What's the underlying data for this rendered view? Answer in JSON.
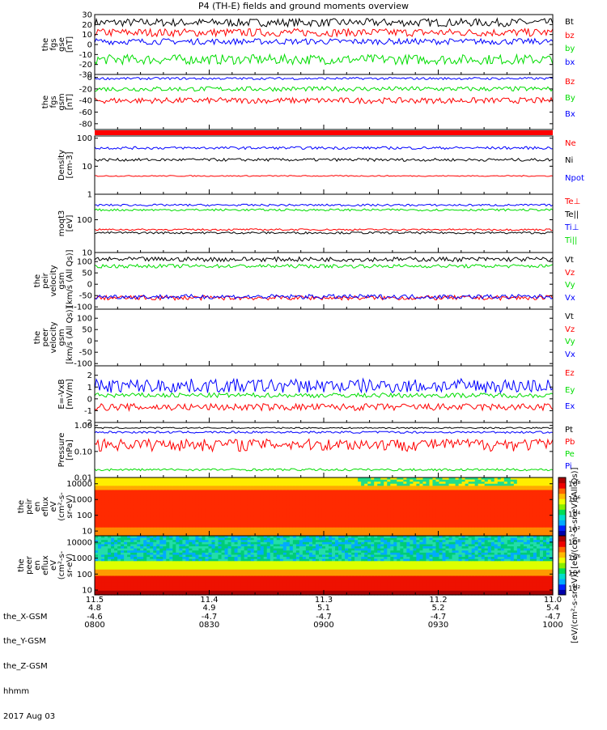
{
  "title": "P4 (TH-E) fields and ground moments overview",
  "date": "2017 Aug 03",
  "ephemeris_labels": [
    "the_X-GSM",
    "the_Y-GSM",
    "the_Z-GSM",
    "hhmm"
  ],
  "ephemeris_columns": [
    [
      "11.5",
      "4.8",
      "-4.6",
      "0800"
    ],
    [
      "11.4",
      "4.9",
      "-4.7",
      "0830"
    ],
    [
      "11.3",
      "5.1",
      "-4.7",
      "0900"
    ],
    [
      "11.2",
      "5.2",
      "-4.7",
      "0930"
    ],
    [
      "11.0",
      "5.4",
      "-4.7",
      "1000"
    ]
  ],
  "colorbar_title": "[eV/(cm²-s-sr-eV)] [eV/(cm²-s-sr-eV)(All Qs)]",
  "colors": {
    "black": "#000000",
    "red": "#ff0000",
    "green": "#00dd00",
    "blue": "#0000ff"
  },
  "chart_data": [
    {
      "type": "line",
      "id": "fgs-gse",
      "ylabel": [
        "the",
        "fgs",
        "gse",
        "[nT]"
      ],
      "ylim": [
        -30,
        30
      ],
      "yticks": [
        "-30",
        "-20",
        "-10",
        "0",
        "10",
        "20",
        "30"
      ],
      "series": [
        {
          "name": "Bt",
          "color": "black",
          "base": 22,
          "amp": 4
        },
        {
          "name": "bz",
          "color": "red",
          "base": 12,
          "amp": 4
        },
        {
          "name": "by",
          "color": "green",
          "base": -15,
          "amp": 5
        },
        {
          "name": "bx",
          "color": "blue",
          "base": 3,
          "amp": 3
        }
      ]
    },
    {
      "type": "line",
      "id": "fgs-gsm",
      "ylabel": [
        "the",
        "fgs",
        "gsm",
        "[nT]"
      ],
      "ylim": [
        -90,
        5
      ],
      "yticks": [
        "-80",
        "-60",
        "-40",
        "-20",
        "0"
      ],
      "series": [
        {
          "name": "Bz",
          "color": "red",
          "base": -40,
          "amp": 5
        },
        {
          "name": "By",
          "color": "green",
          "base": -20,
          "amp": 4
        },
        {
          "name": "Bx",
          "color": "blue",
          "base": -2,
          "amp": 2
        }
      ]
    },
    {
      "type": "bar",
      "id": "flag",
      "ylabel": [],
      "series": []
    },
    {
      "type": "line",
      "id": "density",
      "ylabel": [
        "Density",
        "[cm-3]"
      ],
      "log": true,
      "ylim": [
        1,
        120
      ],
      "yticks": [
        "1",
        "10",
        "100"
      ],
      "series": [
        {
          "name": "Ne",
          "color": "red",
          "base": 4.5,
          "amp": 0.2
        },
        {
          "name": "Ni",
          "color": "black",
          "base": 17,
          "amp": 2
        },
        {
          "name": "Npot",
          "color": "blue",
          "base": 45,
          "amp": 5
        }
      ]
    },
    {
      "type": "line",
      "id": "temperature",
      "ylabel": [
        "moqt3",
        "[eV]"
      ],
      "log": true,
      "ylim": [
        10,
        600
      ],
      "yticks": [
        "10",
        "100"
      ],
      "series": [
        {
          "name": "Te⊥",
          "color": "red",
          "base": 50,
          "amp": 3
        },
        {
          "name": "Te||",
          "color": "black",
          "base": 40,
          "amp": 3
        },
        {
          "name": "Ti⊥",
          "color": "blue",
          "base": 280,
          "amp": 20
        },
        {
          "name": "Ti||",
          "color": "green",
          "base": 200,
          "amp": 15
        }
      ]
    },
    {
      "type": "line",
      "id": "peir-velocity",
      "ylabel": [
        "the",
        "peir",
        "velocity",
        "gsm",
        "[km/s (All Qs)]"
      ],
      "ylim": [
        -110,
        140
      ],
      "yticks": [
        "-100",
        "-50",
        "0",
        "50",
        "100"
      ],
      "series": [
        {
          "name": "Vt",
          "color": "black",
          "base": 110,
          "amp": 10
        },
        {
          "name": "Vz",
          "color": "red",
          "base": -60,
          "amp": 10
        },
        {
          "name": "Vy",
          "color": "green",
          "base": 80,
          "amp": 8
        },
        {
          "name": "Vx",
          "color": "blue",
          "base": -55,
          "amp": 10
        }
      ]
    },
    {
      "type": "line",
      "id": "peer-velocity",
      "ylabel": [
        "the",
        "peer",
        "velocity",
        "gsm",
        "[km/s (All Qs)]"
      ],
      "ylim": [
        -110,
        140
      ],
      "yticks": [
        "-100",
        "-50",
        "0",
        "50",
        "100"
      ],
      "series": [
        {
          "name": "Vt",
          "color": "black",
          "base": null,
          "amp": 0
        },
        {
          "name": "Vz",
          "color": "red",
          "base": null,
          "amp": 0
        },
        {
          "name": "Vy",
          "color": "green",
          "base": null,
          "amp": 0
        },
        {
          "name": "Vx",
          "color": "blue",
          "base": null,
          "amp": 0
        }
      ]
    },
    {
      "type": "line",
      "id": "efield",
      "ylabel": [
        "E=-VxB",
        "[mV/m]"
      ],
      "ylim": [
        -2,
        2.8
      ],
      "yticks": [
        "-2",
        "-1",
        "0",
        "1",
        "2"
      ],
      "series": [
        {
          "name": "Ez",
          "color": "red",
          "base": -0.7,
          "amp": 0.3
        },
        {
          "name": "Ey",
          "color": "green",
          "base": 0.3,
          "amp": 0.2
        },
        {
          "name": "Ex",
          "color": "blue",
          "base": 1.1,
          "amp": 0.6
        }
      ]
    },
    {
      "type": "line",
      "id": "pressure",
      "ylabel": [
        "Pressure",
        "[nPa]"
      ],
      "log": true,
      "ylim": [
        0.01,
        1.3
      ],
      "yticks": [
        "0.01",
        "0.10",
        "1.00"
      ],
      "series": [
        {
          "name": "Pt",
          "color": "black",
          "base": 0.8,
          "amp": 0.05
        },
        {
          "name": "Pb",
          "color": "red",
          "base": 0.2,
          "amp": 0.1
        },
        {
          "name": "Pe",
          "color": "green",
          "base": 0.02,
          "amp": 0.002
        },
        {
          "name": "Pi",
          "color": "blue",
          "base": 0.55,
          "amp": 0.05
        }
      ]
    },
    {
      "type": "heatmap",
      "id": "peir-spectrogram",
      "ylabel": [
        "the",
        "peir",
        "en",
        "eflux",
        "eV",
        "(cm²-s-",
        "sr-eV)"
      ],
      "log": true,
      "ylim": [
        5,
        25000
      ],
      "yticks": [
        "10",
        "100",
        "1000",
        "10000"
      ],
      "cbar_ticks": [
        "10²",
        "10⁴",
        "10⁶",
        "10⁸"
      ]
    },
    {
      "type": "heatmap",
      "id": "peer-spectrogram",
      "ylabel": [
        "the",
        "peer",
        "en",
        "eflux",
        "eV",
        "(cm²-s-",
        "sr-eV)"
      ],
      "log": true,
      "ylim": [
        5,
        25000
      ],
      "yticks": [
        "10",
        "100",
        "1000",
        "10000"
      ],
      "cbar_ticks": [
        "10²",
        "10⁴",
        "10⁶",
        "10⁸"
      ]
    }
  ]
}
